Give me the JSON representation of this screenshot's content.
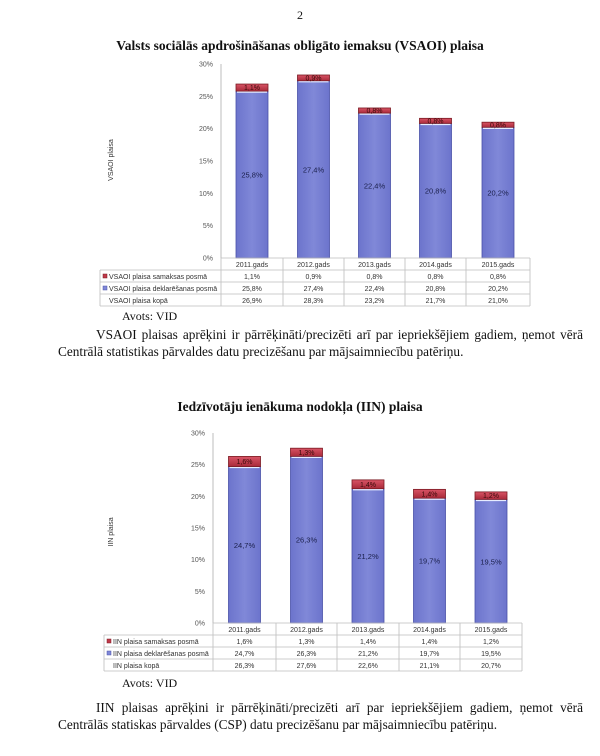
{
  "page_number": "2",
  "colors": {
    "declared": "#8088d8",
    "declared_edge": "#4a52a8",
    "payment": "#c0394a",
    "payment_edge": "#7a1a22",
    "grid": "#bdbdbd"
  },
  "chart_data": [
    {
      "type": "bar",
      "stacked": true,
      "title": "Valsts sociālās apdrošināšanas obligāto iemaksu (VSAOI) plaisa",
      "ylabel": "VSAOI plaisa",
      "xlabel": "",
      "ylim": [
        0,
        30
      ],
      "yticks": [
        "0%",
        "5%",
        "10%",
        "15%",
        "20%",
        "25%",
        "30%"
      ],
      "categories": [
        "2011.gads",
        "2012.gads",
        "2013.gads",
        "2014.gads",
        "2015.gads"
      ],
      "series": [
        {
          "name": "VSAOI plaisa deklarēšanas posmā",
          "values": [
            25.8,
            27.4,
            22.4,
            20.8,
            20.2
          ],
          "labels": [
            "25,8%",
            "27,4%",
            "22,4%",
            "20,8%",
            "20,2%"
          ],
          "color": "#8088d8"
        },
        {
          "name": "VSAOI plaisa samaksas posmā",
          "values": [
            1.1,
            0.9,
            0.8,
            0.8,
            0.8
          ],
          "labels": [
            "1,1%",
            "0,9%",
            "0,8%",
            "0,8%",
            "0,8%"
          ],
          "color": "#c0394a"
        }
      ],
      "table": [
        {
          "name": "VSAOI plaisa samaksas posmā",
          "marker": "payment",
          "cells": [
            "1,1%",
            "0,9%",
            "0,8%",
            "0,8%",
            "0,8%"
          ]
        },
        {
          "name": "VSAOI plaisa deklarēšanas posmā",
          "marker": "declared",
          "cells": [
            "25,8%",
            "27,4%",
            "22,4%",
            "20,8%",
            "20,2%"
          ]
        },
        {
          "name": "VSAOI plaisa kopā",
          "marker": "",
          "cells": [
            "26,9%",
            "28,3%",
            "23,2%",
            "21,7%",
            "21,0%"
          ]
        }
      ],
      "totals": [
        26.9,
        28.3,
        23.2,
        21.7,
        21.0
      ],
      "legend": "data-table-bottom",
      "grid": false,
      "source": "Avots: VID"
    },
    {
      "type": "bar",
      "stacked": true,
      "title": "Iedzīvotāju ienākuma nodokļa (IIN) plaisa",
      "ylabel": "IIN plaisa",
      "xlabel": "",
      "ylim": [
        0,
        30
      ],
      "yticks": [
        "0%",
        "5%",
        "10%",
        "15%",
        "20%",
        "25%",
        "30%"
      ],
      "categories": [
        "2011.gads",
        "2012.gads",
        "2013.gads",
        "2014.gads",
        "2015.gads"
      ],
      "series": [
        {
          "name": "IIN plaisa deklarēšanas posmā",
          "values": [
            24.7,
            26.3,
            21.2,
            19.7,
            19.5
          ],
          "labels": [
            "24,7%",
            "26,3%",
            "21,2%",
            "19,7%",
            "19,5%"
          ],
          "color": "#8088d8"
        },
        {
          "name": "IIN plaisa samaksas posmā",
          "values": [
            1.6,
            1.3,
            1.4,
            1.4,
            1.2
          ],
          "labels": [
            "1,6%",
            "1,3%",
            "1,4%",
            "1,4%",
            "1,2%"
          ],
          "color": "#c0394a"
        }
      ],
      "table": [
        {
          "name": "IIN plaisa samaksas posmā",
          "marker": "payment",
          "cells": [
            "1,6%",
            "1,3%",
            "1,4%",
            "1,4%",
            "1,2%"
          ]
        },
        {
          "name": "IIN plaisa deklarēšanas posmā",
          "marker": "declared",
          "cells": [
            "24,7%",
            "26,3%",
            "21,2%",
            "19,7%",
            "19,5%"
          ]
        },
        {
          "name": "IIN plaisa kopā",
          "marker": "",
          "cells": [
            "26,3%",
            "27,6%",
            "22,6%",
            "21,1%",
            "20,7%"
          ]
        }
      ],
      "totals": [
        26.3,
        27.6,
        22.6,
        21.1,
        20.7
      ],
      "legend": "data-table-bottom",
      "grid": false,
      "source": "Avots: VID"
    }
  ],
  "paragraphs": [
    "VSAOI plaisas aprēķini ir pārrēķināti/precizēti arī par iepriekšējiem gadiem, ņemot vērā Centrālā statistikas pārvaldes datu precizēšanu par mājsaimniecību patēriņu.",
    "IIN plaisas aprēķini ir pārrēķināti/precizēti arī par iepriekšējiem gadiem, ņemot vērā Centrālās statiskas pārvaldes (CSP) datu precizēšanu par mājsaimniecību patēriņu."
  ]
}
